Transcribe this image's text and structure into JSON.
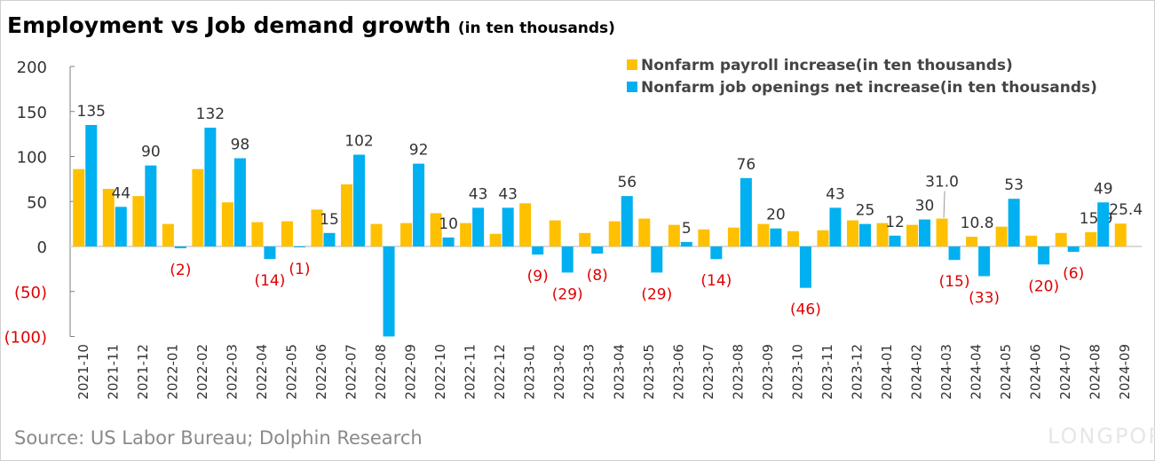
{
  "title": "Employment vs Job demand growth",
  "subtitle": "(in ten thousands)",
  "source": "Source: US Labor Bureau; Dolphin Research",
  "watermark": "LONGPORT",
  "colors": {
    "payroll": "#FFC000",
    "openings": "#00B0F0",
    "negative_label": "#E00000",
    "axis": "#7f7f7f"
  },
  "chart_data": {
    "type": "bar",
    "ylim": [
      -100,
      200
    ],
    "yticks": [
      200,
      150,
      100,
      50,
      0,
      -50,
      -100
    ],
    "ytick_labels": [
      "200",
      "150",
      "100",
      "50",
      "0",
      "(50)",
      "(100)"
    ],
    "grid": false,
    "legend_position": "top-right",
    "categories": [
      "2021-10",
      "2021-11",
      "2021-12",
      "2022-01",
      "2022-02",
      "2022-03",
      "2022-04",
      "2022-05",
      "2022-06",
      "2022-07",
      "2022-08",
      "2022-09",
      "2022-10",
      "2022-11",
      "2022-12",
      "2023-01",
      "2023-02",
      "2023-03",
      "2023-04",
      "2023-05",
      "2023-06",
      "2023-07",
      "2023-08",
      "2023-09",
      "2023-10",
      "2023-11",
      "2023-12",
      "2024-01",
      "2024-02",
      "2024-03",
      "2024-04",
      "2024-05",
      "2024-06",
      "2024-07",
      "2024-08",
      "2024-09"
    ],
    "series": [
      {
        "name": "Nonfarm payroll increase(in ten thousands)",
        "values": [
          86,
          64,
          56,
          25,
          86,
          49,
          27,
          28,
          41,
          69,
          25,
          26,
          37,
          26,
          14,
          48,
          29,
          15,
          28,
          31,
          24,
          19,
          21,
          25,
          17,
          18,
          29,
          26,
          24,
          31.0,
          10.8,
          22,
          12,
          15,
          15.9,
          25.4
        ],
        "labels": [
          null,
          null,
          null,
          null,
          null,
          null,
          null,
          null,
          null,
          null,
          null,
          null,
          null,
          null,
          null,
          null,
          null,
          null,
          null,
          null,
          null,
          null,
          null,
          null,
          null,
          null,
          null,
          null,
          null,
          "31.0",
          "10.8",
          null,
          null,
          null,
          "15.9",
          "25.4"
        ]
      },
      {
        "name": "Nonfarm job openings net increase(in ten thousands)",
        "values": [
          135,
          44,
          90,
          -2,
          132,
          98,
          -14,
          -1,
          15,
          102,
          -100,
          92,
          10,
          43,
          43,
          -9,
          -29,
          -8,
          56,
          -29,
          5,
          -14,
          76,
          20,
          -46,
          43,
          25,
          12,
          30,
          -15,
          -33,
          53,
          -20,
          -6,
          49,
          null
        ],
        "labels": [
          "135",
          "44",
          "90",
          "(2)",
          "132",
          "98",
          "(14)",
          "(1)",
          "15",
          "102",
          null,
          "92",
          "10",
          "43",
          "43",
          "(9)",
          "(29)",
          "(8)",
          "56",
          "(29)",
          "5",
          "(14)",
          "76",
          "20",
          "(46)",
          "43",
          "25",
          "12",
          "30",
          "(15)",
          "(33)",
          "53",
          "(20)",
          "(6)",
          "49",
          null
        ]
      }
    ]
  }
}
